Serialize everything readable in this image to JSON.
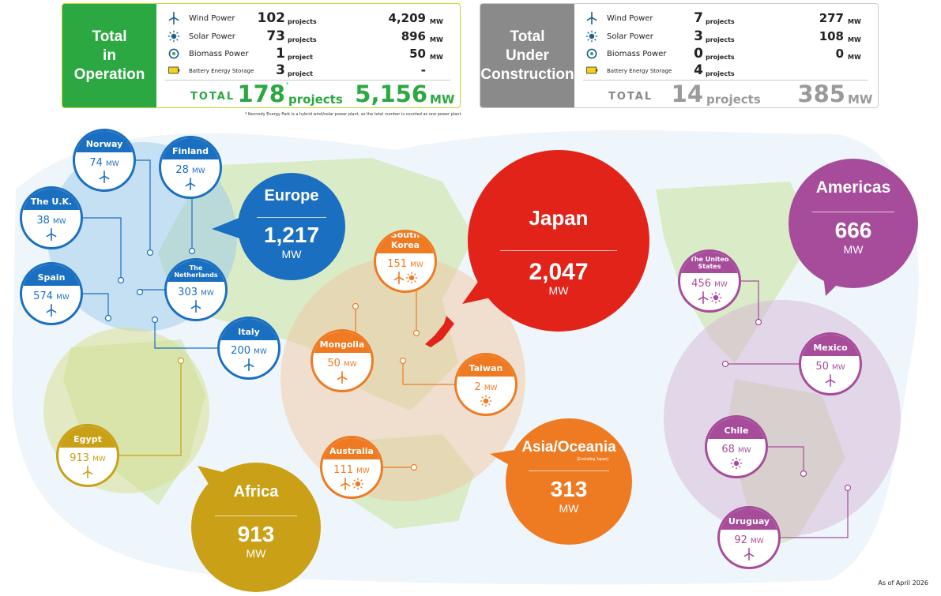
{
  "operation": {
    "title_lines": [
      "Total",
      "in",
      "Operation"
    ],
    "rows": [
      {
        "name": "Wind Power",
        "count": 102,
        "count_unit": "projects",
        "mw": "4,209",
        "mw_unit": "MW"
      },
      {
        "name": "Solar Power",
        "count": 73,
        "count_unit": "projects",
        "mw": "896",
        "mw_unit": "MW"
      },
      {
        "name": "Biomass Power",
        "count": 1,
        "count_unit": "project",
        "mw": "50",
        "mw_unit": "MW"
      },
      {
        "name": "Battery Energy Storage",
        "count": 3,
        "count_unit": "project",
        "mw": "-"
      }
    ],
    "total": {
      "label": "TOTAL",
      "count": 178,
      "mark": "*",
      "count_unit": "projects",
      "mw": "5,156",
      "mw_unit": "MW"
    }
  },
  "footnote": "* Kennedy Energy Park is a hybrid wind/solar power plant, so the total number is counted as one power plant.",
  "construction": {
    "title_lines": [
      "Total",
      "Under",
      "Construction"
    ],
    "rows": [
      {
        "name": "Wind Power",
        "count": 7,
        "count_unit": "projects",
        "mw": "277",
        "mw_unit": "MW"
      },
      {
        "name": "Solar Power",
        "count": 3,
        "count_unit": "projects",
        "mw": "108",
        "mw_unit": "MW"
      },
      {
        "name": "Biomass Power",
        "count": 0,
        "count_unit": "projects",
        "mw": "0",
        "mw_unit": "MW"
      },
      {
        "name": "Battery Energy Storage",
        "count": 4,
        "count_unit": "projects"
      }
    ],
    "total": {
      "label": "TOTAL",
      "count": 14,
      "count_unit": "projects",
      "mw": "385",
      "mw_unit": "MW"
    }
  },
  "regions": [
    {
      "name": "Europe",
      "value": "1,217",
      "unit": "MW"
    },
    {
      "name": "Japan",
      "value": "2,047",
      "unit": "MW"
    },
    {
      "name": "Americas",
      "value": "666",
      "unit": "MW"
    },
    {
      "name": "Africa",
      "value": "913",
      "unit": "MW"
    },
    {
      "name": "Asia/Oceania",
      "note": "(Excluding Japan)",
      "value": "313",
      "unit": "MW"
    }
  ],
  "countries": [
    {
      "name": "Norway",
      "value": 74,
      "unit": "MW"
    },
    {
      "name": "Finland",
      "value": 28,
      "unit": "MW"
    },
    {
      "name": "The U.K.",
      "value": 38,
      "unit": "MW"
    },
    {
      "name": "Spain",
      "value": 574,
      "unit": "MW"
    },
    {
      "name": "The Netherlands",
      "value": 303,
      "unit": "MW"
    },
    {
      "name": "Italy",
      "value": 200,
      "unit": "MW"
    },
    {
      "name": "Egypt",
      "value": 913,
      "unit": "MW"
    },
    {
      "name": "South Korea",
      "value": 151,
      "unit": "MW"
    },
    {
      "name": "Mongolia",
      "value": 50,
      "unit": "MW"
    },
    {
      "name": "Taiwan",
      "value": 2,
      "unit": "MW"
    },
    {
      "name": "Australia",
      "value": 111,
      "unit": "MW"
    },
    {
      "name": "The United States",
      "value": 456,
      "unit": "MW"
    },
    {
      "name": "Mexico",
      "value": 50,
      "unit": "MW"
    },
    {
      "name": "Chile",
      "value": 68,
      "unit": "MW"
    },
    {
      "name": "Uruguay",
      "value": 92,
      "unit": "MW"
    }
  ],
  "as_of": "As of April 2026"
}
